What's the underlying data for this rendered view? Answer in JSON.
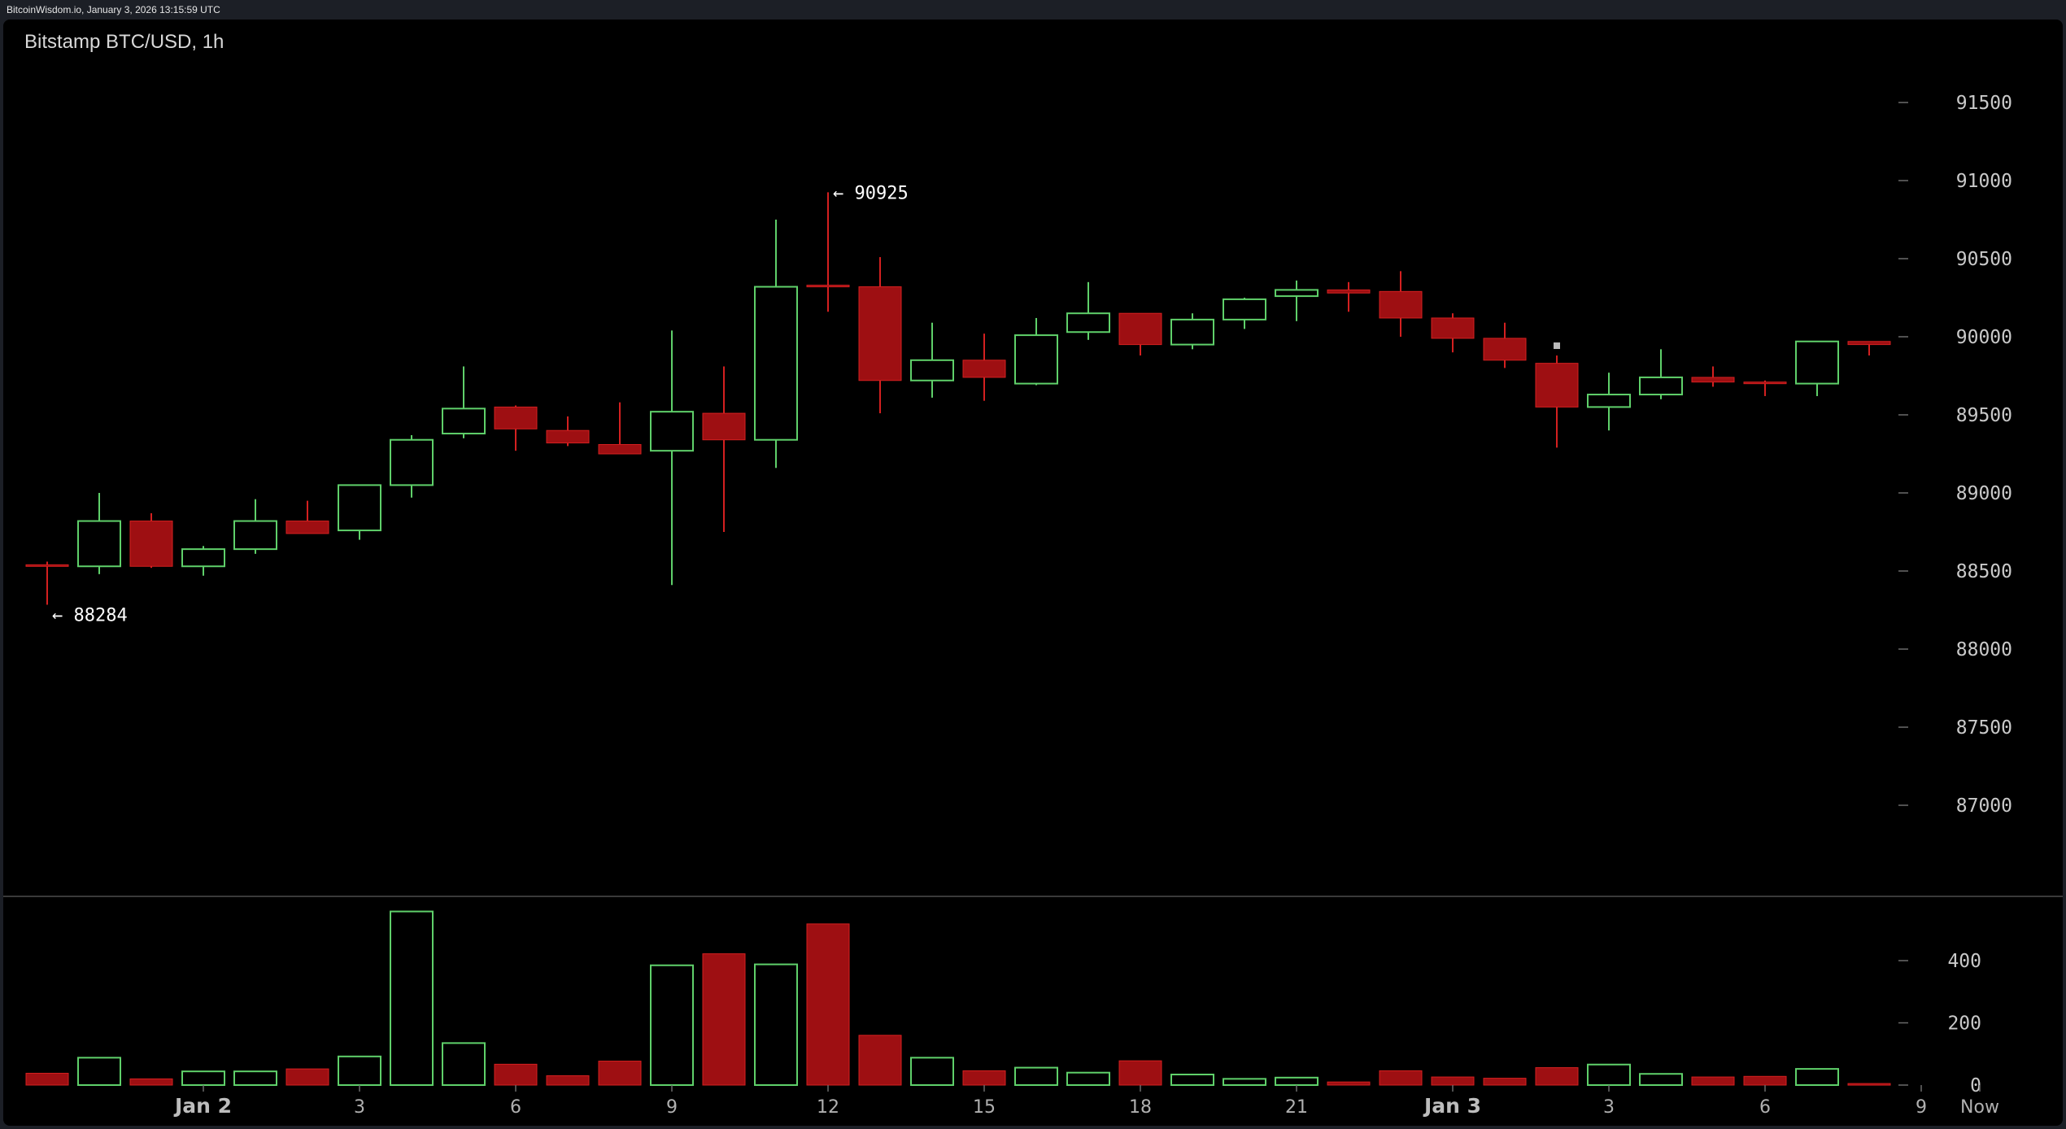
{
  "header": {
    "source_stamp": "BitcoinWisdom.io, January 3, 2026 13:15:59 UTC"
  },
  "chart_title": "Bitstamp BTC/USD, 1h",
  "colors": {
    "up": "#5fd06a",
    "down": "#9e0f12",
    "down_wick": "#d42020",
    "background": "#000000"
  },
  "chart_data": [
    {
      "type": "candlestick",
      "title": "Bitstamp BTC/USD, 1h",
      "ylim": [
        86500,
        91800
      ],
      "y_ticks": [
        87000,
        87500,
        88000,
        88500,
        89000,
        89500,
        90000,
        90500,
        91000,
        91500
      ],
      "x_labels": [
        {
          "index": 3,
          "text": "Jan 2",
          "bold": true
        },
        {
          "index": 6,
          "text": "3"
        },
        {
          "index": 9,
          "text": "6"
        },
        {
          "index": 12,
          "text": "9"
        },
        {
          "index": 15,
          "text": "12"
        },
        {
          "index": 18,
          "text": "15"
        },
        {
          "index": 21,
          "text": "18"
        },
        {
          "index": 24,
          "text": "21"
        },
        {
          "index": 27,
          "text": "Jan 3",
          "bold": true
        },
        {
          "index": 30,
          "text": "3"
        },
        {
          "index": 33,
          "text": "6"
        },
        {
          "index": 36,
          "text": "9"
        },
        {
          "index": 37,
          "text": "Now"
        }
      ],
      "candles": [
        {
          "o": 88540,
          "h": 88560,
          "l": 88284,
          "c": 88530
        },
        {
          "o": 88530,
          "h": 89000,
          "l": 88480,
          "c": 88820
        },
        {
          "o": 88820,
          "h": 88870,
          "l": 88520,
          "c": 88530
        },
        {
          "o": 88530,
          "h": 88660,
          "l": 88470,
          "c": 88640
        },
        {
          "o": 88640,
          "h": 88960,
          "l": 88610,
          "c": 88820
        },
        {
          "o": 88820,
          "h": 88950,
          "l": 88740,
          "c": 88740
        },
        {
          "o": 88760,
          "h": 89050,
          "l": 88700,
          "c": 89050
        },
        {
          "o": 89050,
          "h": 89370,
          "l": 88970,
          "c": 89340
        },
        {
          "o": 89380,
          "h": 89810,
          "l": 89350,
          "c": 89540
        },
        {
          "o": 89550,
          "h": 89560,
          "l": 89270,
          "c": 89410
        },
        {
          "o": 89400,
          "h": 89490,
          "l": 89300,
          "c": 89320
        },
        {
          "o": 89310,
          "h": 89580,
          "l": 89250,
          "c": 89250
        },
        {
          "o": 89270,
          "h": 90040,
          "l": 88410,
          "c": 89520
        },
        {
          "o": 89510,
          "h": 89810,
          "l": 88750,
          "c": 89340
        },
        {
          "o": 89340,
          "h": 90750,
          "l": 89160,
          "c": 90320
        },
        {
          "o": 90330,
          "h": 90925,
          "l": 90160,
          "c": 90320
        },
        {
          "o": 90320,
          "h": 90510,
          "l": 89510,
          "c": 89720
        },
        {
          "o": 89720,
          "h": 90090,
          "l": 89610,
          "c": 89850
        },
        {
          "o": 89850,
          "h": 90020,
          "l": 89590,
          "c": 89740
        },
        {
          "o": 89700,
          "h": 90120,
          "l": 89690,
          "c": 90010
        },
        {
          "o": 90030,
          "h": 90350,
          "l": 89980,
          "c": 90150
        },
        {
          "o": 90150,
          "h": 90150,
          "l": 89880,
          "c": 89950
        },
        {
          "o": 89950,
          "h": 90150,
          "l": 89920,
          "c": 90110
        },
        {
          "o": 90110,
          "h": 90250,
          "l": 90050,
          "c": 90240
        },
        {
          "o": 90260,
          "h": 90360,
          "l": 90100,
          "c": 90300
        },
        {
          "o": 90300,
          "h": 90350,
          "l": 90160,
          "c": 90280
        },
        {
          "o": 90290,
          "h": 90420,
          "l": 90000,
          "c": 90120
        },
        {
          "o": 90120,
          "h": 90150,
          "l": 89900,
          "c": 89990
        },
        {
          "o": 89990,
          "h": 90090,
          "l": 89800,
          "c": 89850
        },
        {
          "o": 89830,
          "h": 89880,
          "l": 89290,
          "c": 89550
        },
        {
          "o": 89550,
          "h": 89770,
          "l": 89400,
          "c": 89630
        },
        {
          "o": 89630,
          "h": 89920,
          "l": 89600,
          "c": 89740
        },
        {
          "o": 89740,
          "h": 89810,
          "l": 89680,
          "c": 89710
        },
        {
          "o": 89710,
          "h": 89720,
          "l": 89620,
          "c": 89700
        },
        {
          "o": 89700,
          "h": 89970,
          "l": 89620,
          "c": 89970
        },
        {
          "o": 89970,
          "h": 89970,
          "l": 89880,
          "c": 89950
        }
      ],
      "annotations": [
        {
          "index": 15,
          "value": 90925,
          "text": "← 90925",
          "at": "high"
        },
        {
          "index": 0,
          "value": 88284,
          "text": "← 88284",
          "at": "low"
        }
      ]
    },
    {
      "type": "bar",
      "title": "",
      "ylim": [
        0,
        560
      ],
      "y_ticks": [
        0,
        200,
        400
      ],
      "volumes": [
        38,
        88,
        20,
        44,
        44,
        52,
        92,
        558,
        135,
        67,
        30,
        77,
        385,
        422,
        388,
        518,
        160,
        88,
        46,
        56,
        40,
        78,
        34,
        20,
        24,
        10,
        46,
        26,
        22,
        56,
        66,
        36,
        26,
        28,
        52,
        5
      ],
      "directions": [
        "down",
        "up",
        "down",
        "up",
        "up",
        "down",
        "up",
        "up",
        "up",
        "down",
        "down",
        "down",
        "up",
        "down",
        "up",
        "down",
        "down",
        "up",
        "down",
        "up",
        "up",
        "down",
        "up",
        "up",
        "up",
        "down",
        "down",
        "down",
        "down",
        "down",
        "up",
        "up",
        "down",
        "down",
        "up",
        "down"
      ]
    }
  ]
}
